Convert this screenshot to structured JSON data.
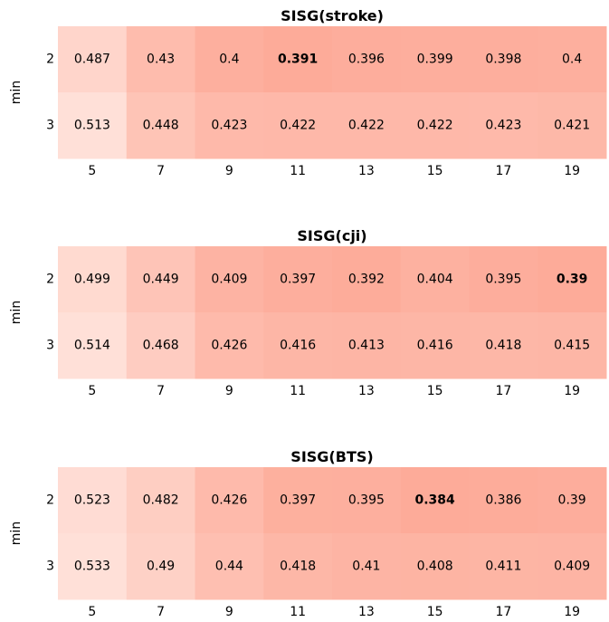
{
  "chart_data": [
    {
      "type": "heatmap",
      "title": "SISG(stroke)",
      "ylabel": "min",
      "xlabel": "",
      "x": [
        "5",
        "7",
        "9",
        "11",
        "13",
        "15",
        "17",
        "19"
      ],
      "y": [
        "2",
        "3"
      ],
      "values": [
        [
          0.487,
          0.43,
          0.4,
          0.391,
          0.396,
          0.399,
          0.398,
          0.4
        ],
        [
          0.513,
          0.448,
          0.423,
          0.422,
          0.422,
          0.422,
          0.423,
          0.421
        ]
      ],
      "labels": [
        [
          "0.487",
          "0.43",
          "0.4",
          "0.391",
          "0.396",
          "0.399",
          "0.398",
          "0.4"
        ],
        [
          "0.513",
          "0.448",
          "0.423",
          "0.422",
          "0.422",
          "0.422",
          "0.423",
          "0.421"
        ]
      ],
      "best": [
        0,
        3
      ],
      "colormap": "reds",
      "color_high": "#fdab99",
      "color_low": "#ffe0d8"
    },
    {
      "type": "heatmap",
      "title": "SISG(cji)",
      "ylabel": "min",
      "xlabel": "",
      "x": [
        "5",
        "7",
        "9",
        "11",
        "13",
        "15",
        "17",
        "19"
      ],
      "y": [
        "2",
        "3"
      ],
      "values": [
        [
          0.499,
          0.449,
          0.409,
          0.397,
          0.392,
          0.404,
          0.395,
          0.39
        ],
        [
          0.514,
          0.468,
          0.426,
          0.416,
          0.413,
          0.416,
          0.418,
          0.415
        ]
      ],
      "labels": [
        [
          "0.499",
          "0.449",
          "0.409",
          "0.397",
          "0.392",
          "0.404",
          "0.395",
          "0.39"
        ],
        [
          "0.514",
          "0.468",
          "0.426",
          "0.416",
          "0.413",
          "0.416",
          "0.418",
          "0.415"
        ]
      ],
      "best": [
        0,
        7
      ],
      "colormap": "reds",
      "color_high": "#fdab99",
      "color_low": "#ffe0d8"
    },
    {
      "type": "heatmap",
      "title": "SISG(BTS)",
      "ylabel": "min",
      "xlabel": "",
      "x": [
        "5",
        "7",
        "9",
        "11",
        "13",
        "15",
        "17",
        "19"
      ],
      "y": [
        "2",
        "3"
      ],
      "values": [
        [
          0.523,
          0.482,
          0.426,
          0.397,
          0.395,
          0.384,
          0.386,
          0.39
        ],
        [
          0.533,
          0.49,
          0.44,
          0.418,
          0.41,
          0.408,
          0.411,
          0.409
        ]
      ],
      "labels": [
        [
          "0.523",
          "0.482",
          "0.426",
          "0.397",
          "0.395",
          "0.384",
          "0.386",
          "0.39"
        ],
        [
          "0.533",
          "0.49",
          "0.44",
          "0.418",
          "0.41",
          "0.408",
          "0.411",
          "0.409"
        ]
      ],
      "best": [
        0,
        5
      ],
      "colormap": "reds",
      "color_high": "#fdab99",
      "color_low": "#ffe0d8"
    }
  ]
}
